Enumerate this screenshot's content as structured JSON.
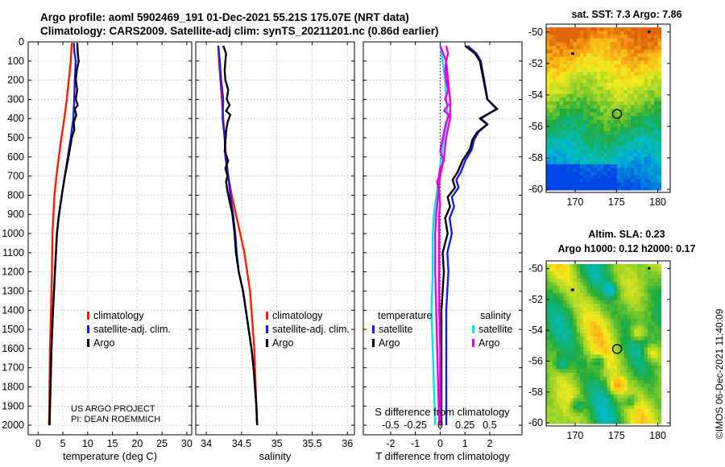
{
  "header": {
    "line1": "Argo profile: aoml 5902469_191 01-Dec-2021 55.21S 175.07E (NRT data)",
    "line2": "Climatology: CARS2009. Satellite-adj clim: synTS_20211201.nc (0.86d earlier)"
  },
  "watermark": "©IMOS 06-Dec-2021 11:40:09",
  "project": {
    "line1": "US ARGO PROJECT",
    "line2": "PI: DEAN ROEMMICH"
  },
  "colors": {
    "climatology": "#ff1a00",
    "satellite": "#1a1aee",
    "argo": "#000000",
    "temp_sat_diff": "#00e5e5",
    "sal_sat_diff": "#e600e6"
  },
  "chart_data": [
    {
      "type": "line",
      "title": "",
      "xlabel": "temperature (deg C)",
      "ylabel": "",
      "xlim": [
        -2,
        31
      ],
      "ylim": [
        2050,
        0
      ],
      "xticks": [
        0,
        5,
        10,
        15,
        20,
        25,
        30
      ],
      "yticks": [
        0,
        100,
        200,
        300,
        400,
        500,
        600,
        700,
        800,
        900,
        1000,
        1100,
        1200,
        1300,
        1400,
        1500,
        1600,
        1700,
        1800,
        1900,
        2000
      ],
      "legend": [
        "climatology",
        "satellite-adj. clim.",
        "Argo"
      ],
      "series": [
        {
          "name": "climatology",
          "points": [
            [
              6.8,
              5
            ],
            [
              6.6,
              100
            ],
            [
              6.2,
              200
            ],
            [
              5.8,
              300
            ],
            [
              5.3,
              400
            ],
            [
              4.7,
              500
            ],
            [
              4.2,
              600
            ],
            [
              3.7,
              700
            ],
            [
              3.3,
              800
            ],
            [
              3.1,
              900
            ],
            [
              2.9,
              1000
            ],
            [
              2.8,
              1200
            ],
            [
              2.6,
              1400
            ],
            [
              2.4,
              1600
            ],
            [
              2.3,
              1800
            ],
            [
              2.2,
              2000
            ]
          ]
        },
        {
          "name": "satellite-adj. clim.",
          "points": [
            [
              7.2,
              5
            ],
            [
              7.3,
              50
            ],
            [
              7.6,
              100
            ],
            [
              7.4,
              200
            ],
            [
              7.3,
              300
            ],
            [
              7.1,
              400
            ],
            [
              6.6,
              500
            ],
            [
              6.0,
              600
            ],
            [
              5.4,
              700
            ],
            [
              4.8,
              800
            ],
            [
              4.2,
              900
            ],
            [
              3.8,
              1000
            ],
            [
              3.4,
              1200
            ],
            [
              3.0,
              1400
            ],
            [
              2.7,
              1600
            ],
            [
              2.5,
              1800
            ],
            [
              2.3,
              2000
            ]
          ]
        },
        {
          "name": "Argo",
          "points": [
            [
              7.9,
              5
            ],
            [
              8.0,
              60
            ],
            [
              8.2,
              100
            ],
            [
              7.8,
              150
            ],
            [
              7.6,
              200
            ],
            [
              7.9,
              250
            ],
            [
              7.6,
              300
            ],
            [
              8.0,
              330
            ],
            [
              7.4,
              350
            ],
            [
              7.7,
              380
            ],
            [
              7.2,
              420
            ],
            [
              7.3,
              460
            ],
            [
              6.8,
              500
            ],
            [
              6.4,
              560
            ],
            [
              6.0,
              620
            ],
            [
              5.4,
              700
            ],
            [
              4.9,
              780
            ],
            [
              4.5,
              850
            ],
            [
              4.1,
              930
            ],
            [
              3.8,
              1000
            ],
            [
              3.4,
              1200
            ],
            [
              3.0,
              1400
            ],
            [
              2.7,
              1600
            ],
            [
              2.5,
              1800
            ],
            [
              2.3,
              2000
            ]
          ]
        }
      ]
    },
    {
      "type": "line",
      "title": "",
      "xlabel": "salinity",
      "ylabel": "",
      "xlim": [
        33.85,
        36.1
      ],
      "ylim": [
        2050,
        0
      ],
      "xticks": [
        34,
        34.5,
        35,
        35.5,
        36
      ],
      "xticklabels": [
        "34",
        "34.5",
        "35",
        "35.5",
        "36"
      ],
      "legend": [
        "climatology",
        "satellite-adj. clim.",
        "Argo"
      ],
      "series": [
        {
          "name": "climatology",
          "points": [
            [
              34.17,
              20
            ],
            [
              34.18,
              100
            ],
            [
              34.2,
              200
            ],
            [
              34.22,
              300
            ],
            [
              34.24,
              400
            ],
            [
              34.26,
              500
            ],
            [
              34.28,
              600
            ],
            [
              34.31,
              700
            ],
            [
              34.36,
              800
            ],
            [
              34.42,
              900
            ],
            [
              34.48,
              1000
            ],
            [
              34.54,
              1100
            ],
            [
              34.58,
              1200
            ],
            [
              34.62,
              1300
            ],
            [
              34.64,
              1400
            ],
            [
              34.66,
              1500
            ],
            [
              34.68,
              1600
            ],
            [
              34.69,
              1700
            ],
            [
              34.7,
              1800
            ],
            [
              34.71,
              1900
            ],
            [
              34.72,
              2000
            ]
          ]
        },
        {
          "name": "satellite-adj. clim.",
          "points": [
            [
              34.17,
              20
            ],
            [
              34.19,
              100
            ],
            [
              34.21,
              200
            ],
            [
              34.24,
              300
            ],
            [
              34.23,
              400
            ],
            [
              34.26,
              500
            ],
            [
              34.27,
              600
            ],
            [
              34.31,
              700
            ],
            [
              34.34,
              800
            ],
            [
              34.38,
              900
            ],
            [
              34.41,
              1000
            ],
            [
              34.43,
              1100
            ],
            [
              34.46,
              1200
            ],
            [
              34.52,
              1300
            ],
            [
              34.56,
              1400
            ],
            [
              34.6,
              1500
            ],
            [
              34.64,
              1600
            ],
            [
              34.67,
              1700
            ],
            [
              34.69,
              1800
            ],
            [
              34.71,
              1900
            ],
            [
              34.72,
              2000
            ]
          ]
        },
        {
          "name": "Argo",
          "points": [
            [
              34.24,
              20
            ],
            [
              34.28,
              60
            ],
            [
              34.27,
              100
            ],
            [
              34.26,
              150
            ],
            [
              34.27,
              200
            ],
            [
              34.31,
              250
            ],
            [
              34.29,
              300
            ],
            [
              34.33,
              330
            ],
            [
              34.28,
              360
            ],
            [
              34.34,
              380
            ],
            [
              34.3,
              420
            ],
            [
              34.28,
              470
            ],
            [
              34.27,
              520
            ],
            [
              34.26,
              570
            ],
            [
              34.31,
              620
            ],
            [
              34.27,
              660
            ],
            [
              34.3,
              700
            ],
            [
              34.28,
              730
            ],
            [
              34.3,
              780
            ],
            [
              34.34,
              850
            ],
            [
              34.37,
              900
            ],
            [
              34.4,
              1000
            ],
            [
              34.42,
              1100
            ],
            [
              34.46,
              1200
            ],
            [
              34.52,
              1300
            ],
            [
              34.56,
              1400
            ],
            [
              34.6,
              1500
            ],
            [
              34.64,
              1600
            ],
            [
              34.67,
              1700
            ],
            [
              34.69,
              1800
            ],
            [
              34.71,
              1900
            ],
            [
              34.72,
              2000
            ]
          ]
        }
      ]
    },
    {
      "type": "line",
      "title": "",
      "xlabel": "T difference from climatology",
      "xlabel_top": "S difference from climatology",
      "ylabel": "",
      "xlim": [
        -3.1,
        3.3
      ],
      "ylim": [
        2050,
        0
      ],
      "xticks": [
        -2,
        -1,
        0,
        1,
        2
      ],
      "xticklabels": [
        "-2",
        "-1",
        "0",
        "1",
        "2"
      ],
      "s_ticklabels": [
        "-0.5",
        "-0.25",
        "0",
        "0.25",
        "0.5"
      ],
      "legend_titles": [
        "temperature",
        "salinity"
      ],
      "legend": [
        "satellite",
        "Argo",
        "satellite",
        "Argo"
      ],
      "series": [
        {
          "name": "temperature satellite",
          "points": [
            [
              0,
              15
            ],
            [
              0.05,
              60
            ],
            [
              0.1,
              100
            ],
            [
              0.2,
              200
            ],
            [
              0.25,
              300
            ],
            [
              0.3,
              400
            ],
            [
              0.15,
              500
            ],
            [
              0.05,
              600
            ],
            [
              -0.05,
              700
            ],
            [
              -0.15,
              800
            ],
            [
              -0.25,
              900
            ],
            [
              -0.3,
              1000
            ],
            [
              -0.3,
              1200
            ],
            [
              -0.35,
              1400
            ],
            [
              -0.3,
              1600
            ],
            [
              -0.25,
              1800
            ],
            [
              -0.2,
              2000
            ]
          ]
        },
        {
          "name": "temperature Argo",
          "points": [
            [
              1.0,
              20
            ],
            [
              1.4,
              60
            ],
            [
              1.6,
              100
            ],
            [
              1.75,
              200
            ],
            [
              1.9,
              300
            ],
            [
              2.3,
              350
            ],
            [
              1.6,
              400
            ],
            [
              1.9,
              430
            ],
            [
              1.5,
              470
            ],
            [
              1.3,
              510
            ],
            [
              1.2,
              560
            ],
            [
              0.9,
              620
            ],
            [
              0.7,
              680
            ],
            [
              0.5,
              720
            ],
            [
              0.6,
              760
            ],
            [
              0.3,
              810
            ],
            [
              0.4,
              860
            ],
            [
              0.2,
              920
            ],
            [
              0.3,
              1000
            ],
            [
              0.1,
              1100
            ],
            [
              0.15,
              1200
            ],
            [
              0.1,
              1300
            ],
            [
              0.05,
              1400
            ],
            [
              0.05,
              1600
            ],
            [
              0.05,
              1800
            ],
            [
              0.05,
              2000
            ]
          ]
        },
        {
          "name": "salinity satellite",
          "points": [
            [
              0.0,
              20
            ],
            [
              0.03,
              60
            ],
            [
              0.06,
              100
            ],
            [
              0.08,
              200
            ],
            [
              0.1,
              300
            ],
            [
              0.1,
              400
            ],
            [
              0.06,
              500
            ],
            [
              0.04,
              600
            ],
            [
              0.0,
              700
            ],
            [
              -0.02,
              800
            ],
            [
              -0.04,
              900
            ],
            [
              -0.05,
              1000
            ],
            [
              -0.05,
              1200
            ],
            [
              -0.04,
              1400
            ],
            [
              -0.03,
              1600
            ],
            [
              -0.02,
              1800
            ],
            [
              -0.01,
              2000
            ]
          ]
        },
        {
          "name": "salinity Argo",
          "points": [
            [
              0.06,
              20
            ],
            [
              0.08,
              60
            ],
            [
              0.06,
              100
            ],
            [
              0.05,
              150
            ],
            [
              0.06,
              200
            ],
            [
              0.08,
              250
            ],
            [
              0.05,
              300
            ],
            [
              0.08,
              330
            ],
            [
              0.04,
              360
            ],
            [
              0.09,
              380
            ],
            [
              0.06,
              420
            ],
            [
              0.04,
              470
            ],
            [
              0.02,
              520
            ],
            [
              0.0,
              570
            ],
            [
              0.04,
              620
            ],
            [
              0.0,
              660
            ],
            [
              -0.01,
              700
            ],
            [
              -0.03,
              730
            ],
            [
              -0.01,
              780
            ],
            [
              0.0,
              850
            ],
            [
              -0.01,
              900
            ],
            [
              -0.01,
              1000
            ],
            [
              -0.01,
              1200
            ],
            [
              -0.01,
              1400
            ],
            [
              0.0,
              1600
            ],
            [
              0.0,
              1800
            ],
            [
              0.0,
              2000
            ]
          ]
        }
      ]
    },
    {
      "type": "heatmap",
      "title": "sat. SST: 7.3 Argo: 7.86",
      "xlim": [
        166.5,
        181.5
      ],
      "ylim": [
        -60.2,
        -49.5
      ],
      "xticks": [
        170,
        175,
        180
      ],
      "yticks": [
        -50,
        -52,
        -54,
        -56,
        -58,
        -60
      ],
      "marker": [
        175.07,
        -55.21
      ]
    },
    {
      "type": "heatmap",
      "title": "Altim. SLA: 0.23",
      "subtitle": "Argo h1000: 0.12 h2000: 0.17",
      "xlim": [
        166.5,
        181.5
      ],
      "ylim": [
        -60.2,
        -49.5
      ],
      "xticks": [
        170,
        175,
        180
      ],
      "yticks": [
        -50,
        -52,
        -54,
        -56,
        -58,
        -60
      ],
      "marker": [
        175.07,
        -55.21
      ]
    }
  ]
}
